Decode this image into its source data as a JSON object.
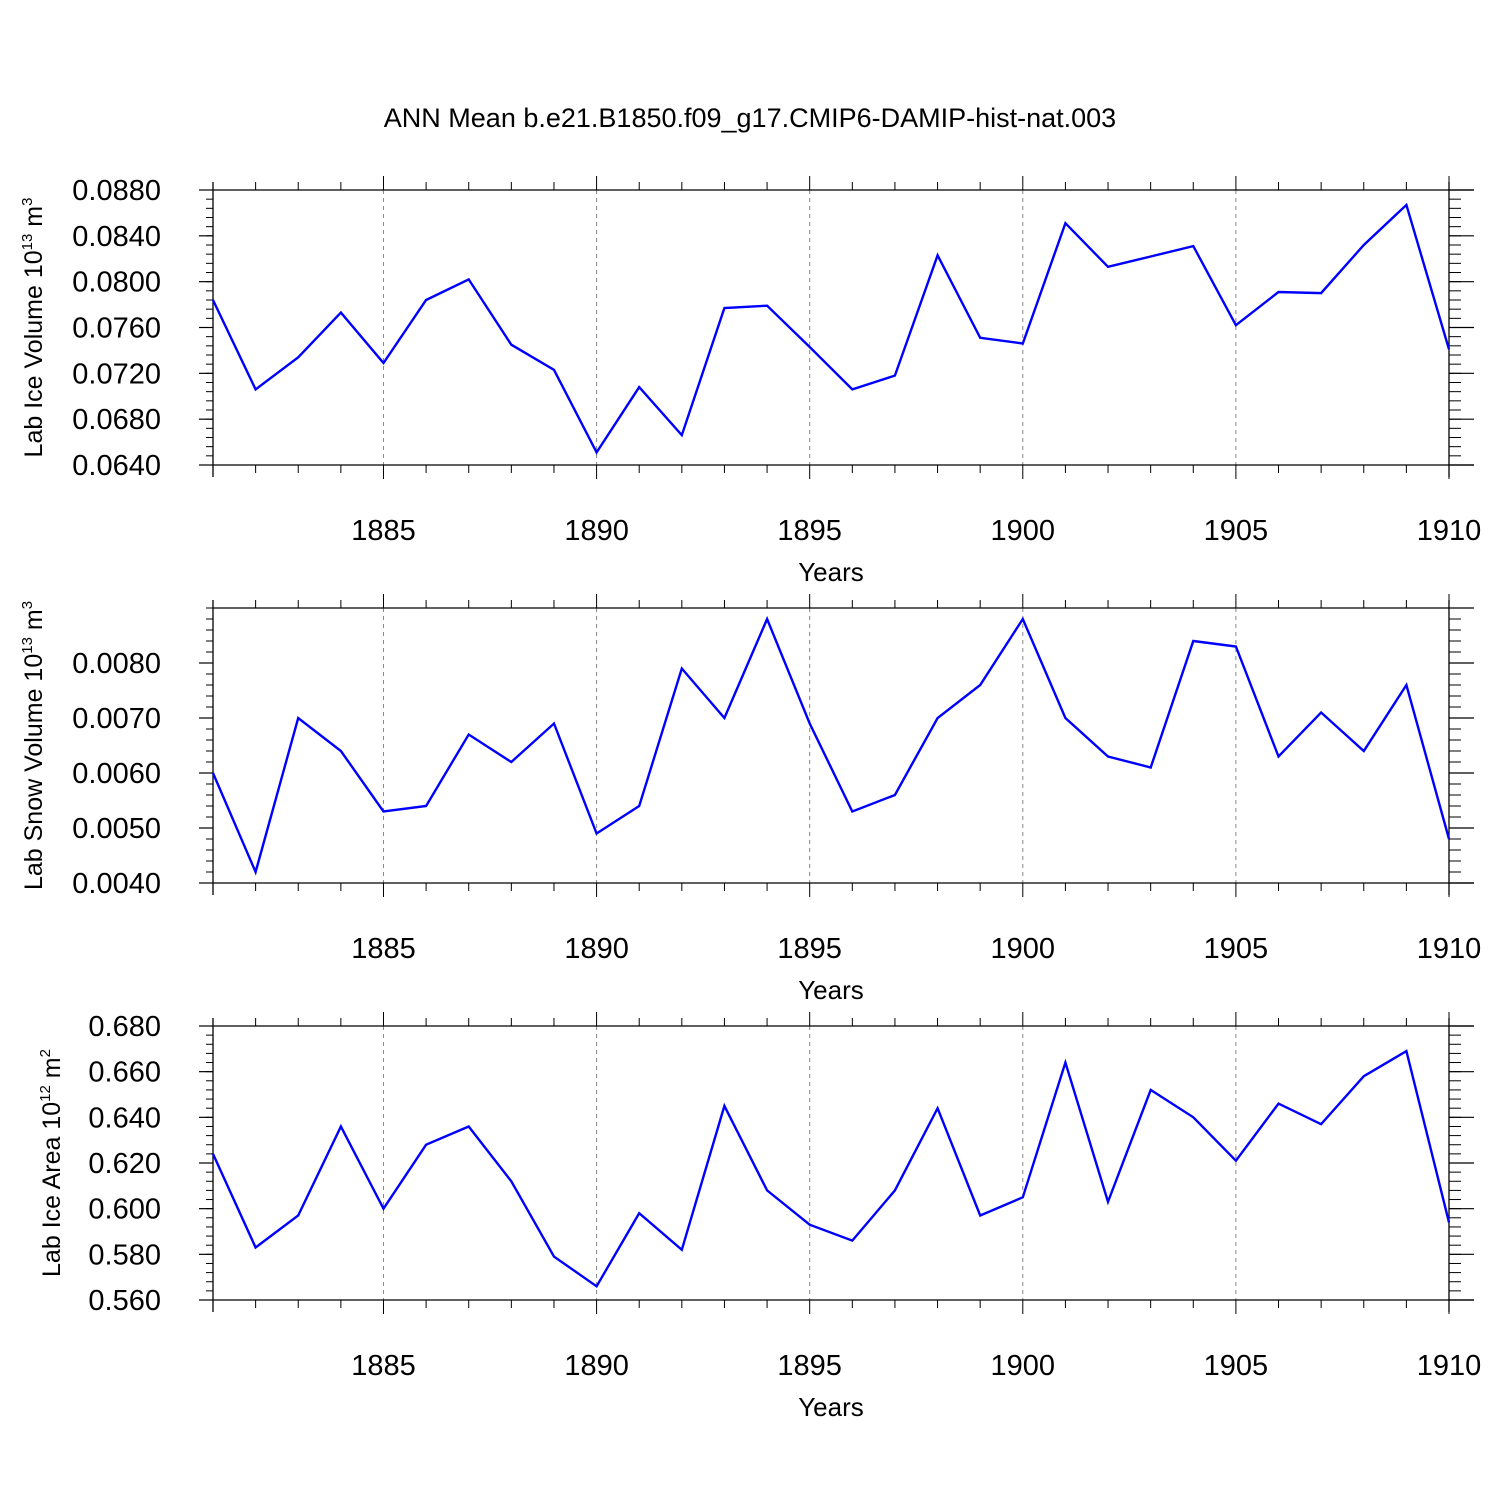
{
  "title": "ANN Mean b.e21.B1850.f09_g17.CMIP6-DAMIP-hist-nat.003",
  "colors": {
    "line": "#0000ff",
    "axis": "#000000",
    "grid": "#888888",
    "background": "#ffffff"
  },
  "chart_data": [
    {
      "type": "line",
      "ylabel": {
        "text": "Lab Ice Volume 10",
        "exp": "13",
        "unit": " m",
        "unit_exp": "3"
      },
      "xlabel": "Years",
      "xlim": [
        1881,
        1910
      ],
      "ylim": [
        0.064,
        0.088
      ],
      "xticks": [
        1885,
        1890,
        1895,
        1900,
        1905,
        1910
      ],
      "yticks": [
        "0.0640",
        "0.0680",
        "0.0720",
        "0.0760",
        "0.0800",
        "0.0840",
        "0.0880"
      ],
      "grid": "vertical dashed at major x ticks",
      "series": [
        {
          "x": [
            1881,
            1882,
            1883,
            1884,
            1885,
            1886,
            1887,
            1888,
            1889,
            1890,
            1891,
            1892,
            1893,
            1894,
            1895,
            1896,
            1897,
            1898,
            1899,
            1900,
            1901,
            1902,
            1903,
            1904,
            1905,
            1906,
            1907,
            1908,
            1909,
            1910
          ],
          "values": [
            0.0784,
            0.0706,
            0.0734,
            0.0773,
            0.0729,
            0.0784,
            0.0802,
            0.0745,
            0.0723,
            0.0651,
            0.0708,
            0.0666,
            0.0777,
            0.0779,
            0.0743,
            0.0706,
            0.0718,
            0.0823,
            0.0751,
            0.0746,
            0.0851,
            0.0813,
            0.0822,
            0.0831,
            0.0762,
            0.0791,
            0.079,
            0.0832,
            0.0867,
            0.0741
          ]
        }
      ]
    },
    {
      "type": "line",
      "ylabel": {
        "text": "Lab Snow Volume 10",
        "exp": "13",
        "unit": " m",
        "unit_exp": "3"
      },
      "xlabel": "Years",
      "xlim": [
        1881,
        1910
      ],
      "ylim": [
        0.004,
        0.009
      ],
      "xticks": [
        1885,
        1890,
        1895,
        1900,
        1905,
        1910
      ],
      "yticks": [
        "0.0040",
        "0.0050",
        "0.0060",
        "0.0070",
        "0.0080"
      ],
      "grid": "vertical dashed at major x ticks",
      "series": [
        {
          "x": [
            1881,
            1882,
            1883,
            1884,
            1885,
            1886,
            1887,
            1888,
            1889,
            1890,
            1891,
            1892,
            1893,
            1894,
            1895,
            1896,
            1897,
            1898,
            1899,
            1900,
            1901,
            1902,
            1903,
            1904,
            1905,
            1906,
            1907,
            1908,
            1909,
            1910
          ],
          "values": [
            0.006,
            0.0042,
            0.007,
            0.0064,
            0.0053,
            0.0054,
            0.0067,
            0.0062,
            0.0069,
            0.0049,
            0.0054,
            0.0079,
            0.007,
            0.0088,
            0.0069,
            0.0053,
            0.0056,
            0.007,
            0.0076,
            0.0088,
            0.007,
            0.0063,
            0.0061,
            0.0084,
            0.0083,
            0.0063,
            0.0071,
            0.0064,
            0.0076,
            0.0048
          ]
        }
      ]
    },
    {
      "type": "line",
      "ylabel": {
        "text": "Lab Ice Area 10",
        "exp": "12",
        "unit": " m",
        "unit_exp": "2"
      },
      "xlabel": "Years",
      "xlim": [
        1881,
        1910
      ],
      "ylim": [
        0.56,
        0.68
      ],
      "xticks": [
        1885,
        1890,
        1895,
        1900,
        1905,
        1910
      ],
      "yticks": [
        "0.560",
        "0.580",
        "0.600",
        "0.620",
        "0.640",
        "0.660",
        "0.680"
      ],
      "grid": "vertical dashed at major x ticks",
      "series": [
        {
          "x": [
            1881,
            1882,
            1883,
            1884,
            1885,
            1886,
            1887,
            1888,
            1889,
            1890,
            1891,
            1892,
            1893,
            1894,
            1895,
            1896,
            1897,
            1898,
            1899,
            1900,
            1901,
            1902,
            1903,
            1904,
            1905,
            1906,
            1907,
            1908,
            1909,
            1910
          ],
          "values": [
            0.624,
            0.583,
            0.597,
            0.636,
            0.6,
            0.628,
            0.636,
            0.612,
            0.579,
            0.566,
            0.598,
            0.582,
            0.645,
            0.608,
            0.593,
            0.586,
            0.608,
            0.644,
            0.597,
            0.605,
            0.664,
            0.603,
            0.652,
            0.64,
            0.621,
            0.646,
            0.637,
            0.658,
            0.669,
            0.594
          ]
        }
      ]
    }
  ]
}
